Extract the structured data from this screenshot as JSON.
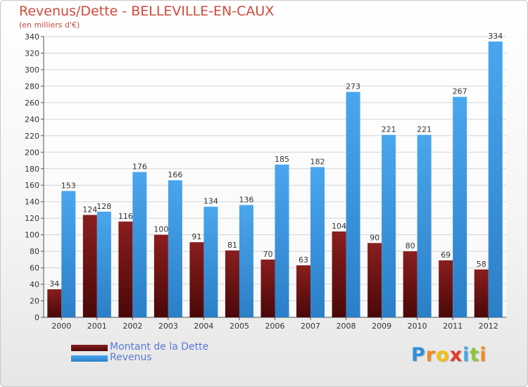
{
  "chart_data": {
    "type": "bar",
    "title": "Revenus/Dette - BELLEVILLE-EN-CAUX",
    "subtitle": "(en milliers d'€)",
    "categories": [
      "2000",
      "2001",
      "2002",
      "2003",
      "2004",
      "2005",
      "2006",
      "2007",
      "2008",
      "2009",
      "2010",
      "2011",
      "2012"
    ],
    "series": [
      {
        "name": "Montant de la Dette",
        "color": "#7a1414",
        "values": [
          34,
          124,
          116,
          100,
          91,
          81,
          70,
          63,
          104,
          90,
          80,
          69,
          58
        ]
      },
      {
        "name": "Revenus",
        "color": "#3d9be8",
        "values": [
          153,
          128,
          176,
          166,
          134,
          136,
          185,
          182,
          273,
          221,
          221,
          267,
          334
        ]
      }
    ],
    "ylim": [
      0,
      340
    ],
    "yticks": [
      0,
      20,
      40,
      60,
      80,
      100,
      120,
      140,
      160,
      180,
      200,
      220,
      240,
      260,
      280,
      300,
      320,
      340
    ],
    "grid": "horizontal",
    "legend": "bottom-left"
  },
  "logo": {
    "letters": [
      {
        "ch": "P",
        "color": "#2e8fd8"
      },
      {
        "ch": "r",
        "color": "#f28a1c"
      },
      {
        "ch": "o",
        "color": "#f5c20a"
      },
      {
        "ch": "x",
        "color": "#e23a2c"
      },
      {
        "ch": "i",
        "color": "#44a8e8"
      },
      {
        "ch": "t",
        "color": "#8cc63f"
      },
      {
        "ch": "i",
        "color": "#f28a1c"
      }
    ]
  }
}
